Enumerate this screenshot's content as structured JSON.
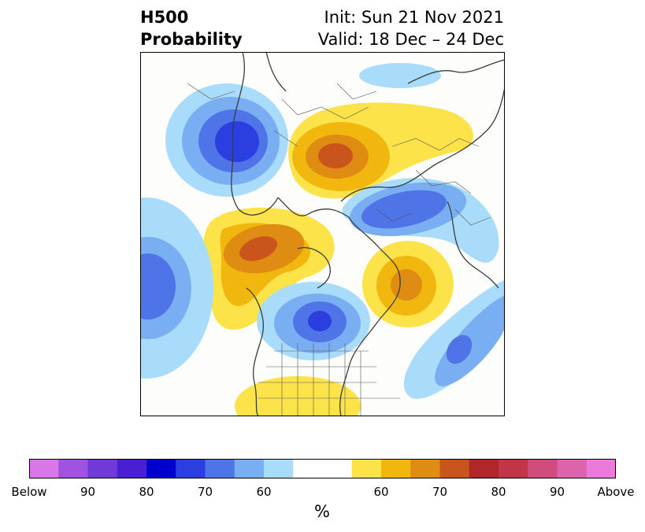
{
  "title": {
    "left_line1": "H500",
    "left_line2": "Probability",
    "right_line1": "Init: Sun 21 Nov 2021",
    "right_line2": "Valid: 18 Dec – 24 Dec"
  },
  "colorbar": {
    "colors": [
      "#d977e8",
      "#a052e0",
      "#6f3ad8",
      "#4a1fd3",
      "#0000cd",
      "#2b3fe0",
      "#4f74e8",
      "#79aef2",
      "#a9dcfb",
      "#ffffff",
      "#ffffff",
      "#fde34a",
      "#f2b70f",
      "#df8c12",
      "#c9541c",
      "#b1262a",
      "#c23548",
      "#cf4c7c",
      "#dd63ab",
      "#eb7adb"
    ],
    "tick_labels": [
      "Below",
      "90",
      "80",
      "70",
      "60",
      "",
      "60",
      "70",
      "80",
      "90",
      "Above"
    ],
    "unit": "%"
  },
  "map": {
    "projection": "north-polar-stereographic",
    "anomaly_colors": {
      "below_60": "#a9dcfb",
      "below_70": "#79aef2",
      "below_80": "#4f74e8",
      "below_90": "#2b3fe0",
      "above_60": "#fde34a",
      "above_70": "#f2b70f",
      "above_80": "#df8c12",
      "above_90": "#c9541c"
    }
  }
}
